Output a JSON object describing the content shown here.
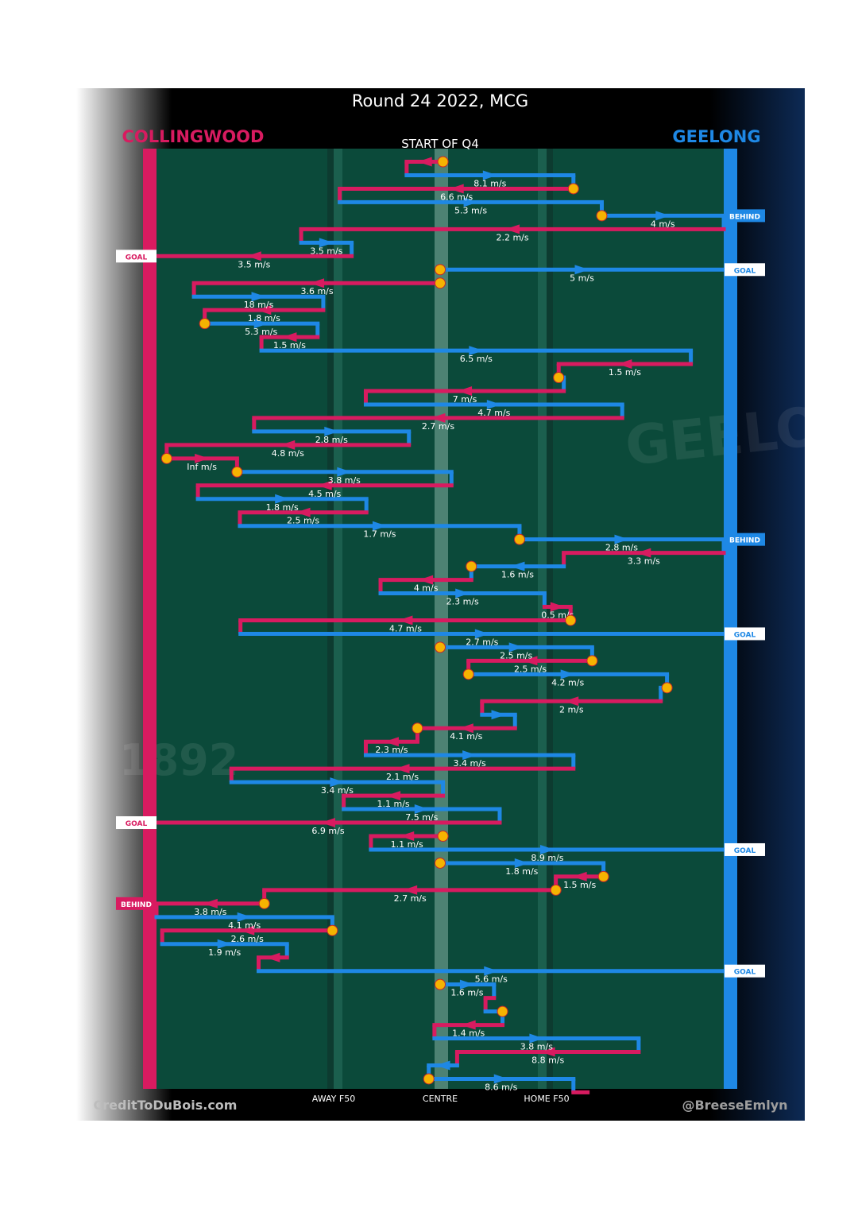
{
  "chart_data": {
    "type": "line",
    "title": "Round 24 2022, MCG",
    "subtitle": "START OF Q4",
    "teams": {
      "left": {
        "name": "COLLINGWOOD",
        "color": "#d81b60"
      },
      "right": {
        "name": "GEELONG",
        "color": "#1e88e5"
      }
    },
    "x_ticks": [
      "AWAY F50",
      "CENTRE",
      "HOME F50"
    ],
    "credits": {
      "left": "CreditToDuBois.com",
      "right": "@BreeseEmlyn"
    },
    "watermarks": {
      "left_year": "1892",
      "right_word": "GEELONG"
    },
    "xlim": [
      0,
      1
    ],
    "colors": {
      "field": "#0b4a3a",
      "stripe": "#1b5f4e",
      "centre": "#6a9a8c",
      "marker": "#f5b301",
      "text": "#ffffff"
    },
    "events": [
      {
        "team": "C",
        "type": "kick",
        "x1": 0.505,
        "x2": 0.441,
        "y": 1.0
      },
      {
        "team": "G",
        "type": "kick",
        "x1": 0.441,
        "x2": 0.735,
        "y": 2.0,
        "speed": "8.1 m/s"
      },
      {
        "team": "C",
        "type": "kick",
        "x1": 0.735,
        "x2": 0.323,
        "y": 3.0,
        "speed": "6.6 m/s"
      },
      {
        "team": "G",
        "type": "kick",
        "x1": 0.323,
        "x2": 0.785,
        "y": 4.0,
        "speed": "5.3 m/s"
      },
      {
        "team": "G",
        "type": "kick",
        "x1": 0.785,
        "x2": 1.0,
        "y": 5.0,
        "speed": "4 m/s",
        "outcome": "BEHIND"
      },
      {
        "team": "C",
        "type": "kick",
        "x1": 1.0,
        "x2": 0.255,
        "y": 6.0,
        "speed": "2.2 m/s"
      },
      {
        "team": "G",
        "type": "kick",
        "x1": 0.255,
        "x2": 0.344,
        "y": 7.0,
        "speed": "3.5 m/s"
      },
      {
        "team": "C",
        "type": "kick",
        "x1": 0.344,
        "x2": 0.0,
        "y": 8.0,
        "speed": "3.5 m/s",
        "outcome": "GOAL"
      },
      {
        "team": "G",
        "type": "kick",
        "x1": 0.5,
        "x2": 1.0,
        "y": 9.0,
        "speed": "5 m/s",
        "outcome": "GOAL"
      },
      {
        "team": "C",
        "type": "kick",
        "x1": 0.5,
        "x2": 0.066,
        "y": 10.0,
        "speed": "3.6 m/s"
      },
      {
        "team": "G",
        "type": "kick",
        "x1": 0.066,
        "x2": 0.294,
        "y": 11.0,
        "speed": "18 m/s"
      },
      {
        "team": "C",
        "type": "kick",
        "x1": 0.294,
        "x2": 0.085,
        "y": 12.0,
        "speed": "1.8 m/s"
      },
      {
        "team": "G",
        "type": "kick",
        "x1": 0.085,
        "x2": 0.284,
        "y": 13.0,
        "speed": "5.3 m/s"
      },
      {
        "team": "C",
        "type": "kick",
        "x1": 0.284,
        "x2": 0.185,
        "y": 14.0,
        "speed": "1.5 m/s"
      },
      {
        "team": "G",
        "type": "kick",
        "x1": 0.185,
        "x2": 0.942,
        "y": 15.0,
        "speed": "6.5 m/s"
      },
      {
        "team": "C",
        "type": "kick",
        "x1": 0.942,
        "x2": 0.709,
        "y": 16.0,
        "speed": "1.5 m/s"
      },
      {
        "team": "G",
        "type": "kick",
        "x1": 0.709,
        "x2": 0.718,
        "y": 17.0
      },
      {
        "team": "C",
        "type": "kick",
        "x1": 0.718,
        "x2": 0.369,
        "y": 18.0,
        "speed": "7 m/s"
      },
      {
        "team": "G",
        "type": "kick",
        "x1": 0.369,
        "x2": 0.821,
        "y": 19.0,
        "speed": "4.7 m/s"
      },
      {
        "team": "C",
        "type": "kick",
        "x1": 0.821,
        "x2": 0.172,
        "y": 20.0,
        "speed": "2.7 m/s"
      },
      {
        "team": "G",
        "type": "kick",
        "x1": 0.172,
        "x2": 0.445,
        "y": 21.0,
        "speed": "2.8 m/s"
      },
      {
        "team": "C",
        "type": "kick",
        "x1": 0.445,
        "x2": 0.018,
        "y": 22.0,
        "speed": "4.8 m/s"
      },
      {
        "team": "C",
        "type": "kick",
        "x1": 0.018,
        "x2": 0.142,
        "y": 23.0,
        "speed": "Inf m/s"
      },
      {
        "team": "G",
        "type": "kick",
        "x1": 0.142,
        "x2": 0.52,
        "y": 24.0,
        "speed": "3.8 m/s"
      },
      {
        "team": "C",
        "type": "kick",
        "x1": 0.52,
        "x2": 0.073,
        "y": 25.0,
        "speed": "4.5 m/s"
      },
      {
        "team": "G",
        "type": "kick",
        "x1": 0.073,
        "x2": 0.37,
        "y": 26.0,
        "speed": "1.8 m/s"
      },
      {
        "team": "C",
        "type": "kick",
        "x1": 0.37,
        "x2": 0.147,
        "y": 27.0,
        "speed": "2.5 m/s"
      },
      {
        "team": "G",
        "type": "kick",
        "x1": 0.147,
        "x2": 0.64,
        "y": 28.0,
        "speed": "1.7 m/s"
      },
      {
        "team": "G",
        "type": "kick",
        "x1": 0.64,
        "x2": 1.0,
        "y": 29.0,
        "speed": "2.8 m/s",
        "outcome": "BEHIND"
      },
      {
        "team": "C",
        "type": "kick",
        "x1": 1.0,
        "x2": 0.718,
        "y": 30.0,
        "speed": "3.3 m/s"
      },
      {
        "team": "G",
        "type": "kick",
        "x1": 0.718,
        "x2": 0.555,
        "y": 31.0,
        "speed": "1.6 m/s"
      },
      {
        "team": "C",
        "type": "kick",
        "x1": 0.555,
        "x2": 0.395,
        "y": 32.0,
        "speed": "4 m/s"
      },
      {
        "team": "G",
        "type": "kick",
        "x1": 0.395,
        "x2": 0.684,
        "y": 33.0,
        "speed": "2.3 m/s"
      },
      {
        "team": "C",
        "type": "kick",
        "x1": 0.684,
        "x2": 0.73,
        "y": 34.0,
        "speed": "0.5 m/s"
      },
      {
        "team": "C",
        "type": "kick",
        "x1": 0.73,
        "x2": 0.148,
        "y": 35.0,
        "speed": "4.7 m/s"
      },
      {
        "team": "G",
        "type": "kick",
        "x1": 0.148,
        "x2": 1.0,
        "y": 36.0,
        "speed": "2.7 m/s",
        "outcome": "GOAL"
      },
      {
        "team": "G",
        "type": "kick",
        "x1": 0.5,
        "x2": 0.768,
        "y": 37.0,
        "speed": "2.5 m/s"
      },
      {
        "team": "C",
        "type": "kick",
        "x1": 0.768,
        "x2": 0.55,
        "y": 38.0,
        "speed": "2.5 m/s"
      },
      {
        "team": "G",
        "type": "kick",
        "x1": 0.55,
        "x2": 0.9,
        "y": 39.0,
        "speed": "4.2 m/s"
      },
      {
        "team": "G",
        "type": "kick",
        "x1": 0.9,
        "x2": 0.889,
        "y": 40.0
      },
      {
        "team": "C",
        "type": "kick",
        "x1": 0.889,
        "x2": 0.574,
        "y": 41.0,
        "speed": "2 m/s"
      },
      {
        "team": "G",
        "type": "kick",
        "x1": 0.574,
        "x2": 0.632,
        "y": 42.0
      },
      {
        "team": "C",
        "type": "kick",
        "x1": 0.632,
        "x2": 0.46,
        "y": 43.0,
        "speed": "4.1 m/s"
      },
      {
        "team": "C",
        "type": "kick",
        "x1": 0.46,
        "x2": 0.369,
        "y": 44.0,
        "speed": "2.3 m/s"
      },
      {
        "team": "G",
        "type": "kick",
        "x1": 0.369,
        "x2": 0.735,
        "y": 45.0,
        "speed": "3.4 m/s"
      },
      {
        "team": "C",
        "type": "kick",
        "x1": 0.735,
        "x2": 0.132,
        "y": 46.0,
        "speed": "2.1 m/s"
      },
      {
        "team": "G",
        "type": "kick",
        "x1": 0.132,
        "x2": 0.505,
        "y": 47.0,
        "speed": "3.4 m/s"
      },
      {
        "team": "C",
        "type": "kick",
        "x1": 0.505,
        "x2": 0.33,
        "y": 48.0,
        "speed": "1.1 m/s"
      },
      {
        "team": "G",
        "type": "kick",
        "x1": 0.33,
        "x2": 0.605,
        "y": 49.0,
        "speed": "7.5 m/s"
      },
      {
        "team": "C",
        "type": "kick",
        "x1": 0.605,
        "x2": 0.0,
        "y": 50.0,
        "speed": "6.9 m/s",
        "outcome": "GOAL"
      },
      {
        "team": "C",
        "type": "kick",
        "x1": 0.505,
        "x2": 0.378,
        "y": 51.0,
        "speed": "1.1 m/s"
      },
      {
        "team": "G",
        "type": "kick",
        "x1": 0.378,
        "x2": 1.0,
        "y": 52.0,
        "speed": "8.9 m/s",
        "outcome": "GOAL"
      },
      {
        "team": "G",
        "type": "kick",
        "x1": 0.5,
        "x2": 0.788,
        "y": 53.0,
        "speed": "1.8 m/s"
      },
      {
        "team": "C",
        "type": "kick",
        "x1": 0.788,
        "x2": 0.704,
        "y": 54.0,
        "speed": "1.5 m/s"
      },
      {
        "team": "C",
        "type": "kick",
        "x1": 0.704,
        "x2": 0.19,
        "y": 55.0,
        "speed": "2.7 m/s"
      },
      {
        "team": "C",
        "type": "kick",
        "x1": 0.19,
        "x2": 0.0,
        "y": 56.0,
        "speed": "3.8 m/s",
        "outcome": "BEHIND"
      },
      {
        "team": "G",
        "type": "kick",
        "x1": 0.0,
        "x2": 0.31,
        "y": 57.0,
        "speed": "4.1 m/s"
      },
      {
        "team": "C",
        "type": "kick",
        "x1": 0.31,
        "x2": 0.01,
        "y": 58.0,
        "speed": "2.6 m/s"
      },
      {
        "team": "G",
        "type": "kick",
        "x1": 0.01,
        "x2": 0.23,
        "y": 59.0,
        "speed": "1.9 m/s"
      },
      {
        "team": "C",
        "type": "kick",
        "x1": 0.23,
        "x2": 0.18,
        "y": 60.0
      },
      {
        "team": "G",
        "type": "kick",
        "x1": 0.18,
        "x2": 1.0,
        "y": 61.0,
        "speed": "5.6 m/s",
        "outcome": "GOAL"
      },
      {
        "team": "G",
        "type": "kick",
        "x1": 0.5,
        "x2": 0.595,
        "y": 62.0,
        "speed": "1.6 m/s"
      },
      {
        "team": "C",
        "type": "kick",
        "x1": 0.595,
        "x2": 0.58,
        "y": 63.0
      },
      {
        "team": "G",
        "type": "kick",
        "x1": 0.58,
        "x2": 0.61,
        "y": 64.0
      },
      {
        "team": "C",
        "type": "kick",
        "x1": 0.61,
        "x2": 0.49,
        "y": 65.0,
        "speed": "1.4 m/s"
      },
      {
        "team": "G",
        "type": "kick",
        "x1": 0.49,
        "x2": 0.85,
        "y": 66.0,
        "speed": "3.8 m/s"
      },
      {
        "team": "C",
        "type": "kick",
        "x1": 0.85,
        "x2": 0.53,
        "y": 67.0,
        "speed": "8.8 m/s"
      },
      {
        "team": "G",
        "type": "kick",
        "x1": 0.53,
        "x2": 0.48,
        "y": 68.0
      },
      {
        "team": "G",
        "type": "kick",
        "x1": 0.48,
        "x2": 0.735,
        "y": 69.0,
        "speed": "8.6 m/s"
      },
      {
        "team": "C",
        "type": "kick",
        "x1": 0.735,
        "x2": 0.76,
        "y": 70.0
      }
    ],
    "markers": [
      {
        "x": 0.505,
        "y": 1.0
      },
      {
        "x": 0.735,
        "y": 3.0
      },
      {
        "x": 0.785,
        "y": 5.0
      },
      {
        "x": 0.5,
        "y": 9.0
      },
      {
        "x": 0.5,
        "y": 10.0
      },
      {
        "x": 0.085,
        "y": 13.0
      },
      {
        "x": 0.709,
        "y": 17.0
      },
      {
        "x": 0.018,
        "y": 23.0
      },
      {
        "x": 0.142,
        "y": 24.0
      },
      {
        "x": 0.64,
        "y": 29.0
      },
      {
        "x": 0.555,
        "y": 31.0
      },
      {
        "x": 0.73,
        "y": 35.0
      },
      {
        "x": 0.5,
        "y": 37.0
      },
      {
        "x": 0.768,
        "y": 38.0
      },
      {
        "x": 0.55,
        "y": 39.0
      },
      {
        "x": 0.9,
        "y": 40.0
      },
      {
        "x": 0.46,
        "y": 43.0
      },
      {
        "x": 0.505,
        "y": 51.0
      },
      {
        "x": 0.5,
        "y": 53.0
      },
      {
        "x": 0.788,
        "y": 54.0
      },
      {
        "x": 0.704,
        "y": 55.0
      },
      {
        "x": 0.19,
        "y": 56.0
      },
      {
        "x": 0.31,
        "y": 58.0
      },
      {
        "x": 0.5,
        "y": 62.0
      },
      {
        "x": 0.61,
        "y": 64.0
      },
      {
        "x": 0.48,
        "y": 69.0
      }
    ]
  }
}
